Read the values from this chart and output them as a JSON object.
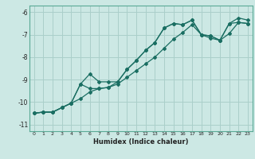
{
  "xlabel": "Humidex (Indice chaleur)",
  "background_color": "#cce8e4",
  "grid_color": "#aacfca",
  "line_color": "#1a6e62",
  "spine_color": "#5aaa96",
  "xlim": [
    -0.5,
    23.5
  ],
  "ylim": [
    -11.3,
    -5.7
  ],
  "yticks": [
    -11,
    -10,
    -9,
    -8,
    -7,
    -6
  ],
  "xticks": [
    0,
    1,
    2,
    3,
    4,
    5,
    6,
    7,
    8,
    9,
    10,
    11,
    12,
    13,
    14,
    15,
    16,
    17,
    18,
    19,
    20,
    21,
    22,
    23
  ],
  "series1_x": [
    0,
    1,
    2,
    3,
    4,
    5,
    6,
    7,
    8,
    9,
    10,
    11,
    12,
    13,
    14,
    15,
    16,
    17,
    18,
    19,
    20,
    21,
    22,
    23
  ],
  "series1_y": [
    -10.5,
    -10.45,
    -10.45,
    -10.25,
    -10.05,
    -9.2,
    -8.75,
    -9.1,
    -9.1,
    -9.1,
    -8.55,
    -8.15,
    -7.7,
    -7.35,
    -6.7,
    -6.5,
    -6.55,
    -6.35,
    -7.0,
    -7.05,
    -7.25,
    -6.5,
    -6.25,
    -6.35
  ],
  "series2_x": [
    0,
    1,
    2,
    3,
    4,
    5,
    6,
    7,
    8,
    9,
    10,
    11,
    12,
    13,
    14,
    15,
    16,
    17,
    18,
    19,
    20,
    21,
    22,
    23
  ],
  "series2_y": [
    -10.5,
    -10.45,
    -10.45,
    -10.25,
    -10.05,
    -9.2,
    -9.4,
    -9.4,
    -9.35,
    -9.1,
    -8.55,
    -8.15,
    -7.7,
    -7.35,
    -6.7,
    -6.5,
    -6.55,
    -6.35,
    -7.0,
    -7.05,
    -7.25,
    -6.5,
    -6.45,
    -6.5
  ],
  "series3_x": [
    0,
    1,
    2,
    3,
    4,
    5,
    6,
    7,
    8,
    9,
    10,
    11,
    12,
    13,
    14,
    15,
    16,
    17,
    18,
    19,
    20,
    21,
    22,
    23
  ],
  "series3_y": [
    -10.5,
    -10.45,
    -10.45,
    -10.25,
    -10.05,
    -9.85,
    -9.55,
    -9.4,
    -9.35,
    -9.2,
    -8.9,
    -8.6,
    -8.3,
    -8.0,
    -7.6,
    -7.2,
    -6.9,
    -6.55,
    -7.0,
    -7.15,
    -7.25,
    -6.95,
    -6.45,
    -6.5
  ]
}
